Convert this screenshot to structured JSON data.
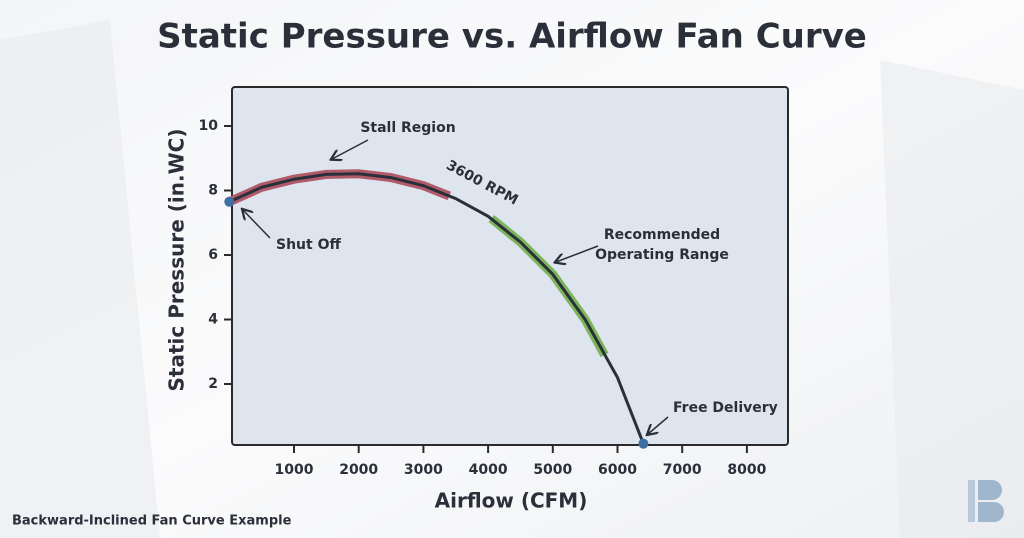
{
  "chart_data": {
    "type": "line",
    "title": "Static Pressure vs. Airflow Fan Curve",
    "xlabel": "Airflow (CFM)",
    "ylabel": "Static Pressure (in.WC)",
    "xlim": [
      0,
      8600
    ],
    "ylim": [
      0,
      11.2
    ],
    "xticks": [
      1000,
      2000,
      3000,
      4000,
      5000,
      6000,
      7000,
      8000
    ],
    "yticks": [
      2,
      4,
      6,
      8,
      10
    ],
    "x": [
      0,
      500,
      1000,
      1500,
      2000,
      2500,
      3000,
      3500,
      4000,
      4500,
      5000,
      5500,
      6000,
      6400
    ],
    "series": [
      {
        "name": "3600 RPM",
        "color": "#2b2f3a",
        "values": [
          7.65,
          8.1,
          8.35,
          8.5,
          8.52,
          8.4,
          8.15,
          7.75,
          7.2,
          6.4,
          5.4,
          4.0,
          2.2,
          0.15
        ]
      }
    ],
    "segments": [
      {
        "text": [
          "Stall Region"
        ],
        "color": "#b05a6a",
        "x": [
          0,
          500,
          1000,
          1500,
          2000,
          2500,
          3000,
          3400
        ],
        "values": [
          7.65,
          8.1,
          8.35,
          8.5,
          8.52,
          8.4,
          8.15,
          7.83
        ]
      },
      {
        "text": [
          "Recommended",
          "Operating Range"
        ],
        "color": "#7db55c",
        "x": [
          4050,
          4500,
          5000,
          5500,
          5800
        ],
        "values": [
          7.13,
          6.4,
          5.4,
          4.0,
          2.9
        ]
      }
    ],
    "points": [
      {
        "label": "Shut Off",
        "x": 0,
        "y": 7.65,
        "color": "#3d6fa3"
      },
      {
        "label": "Free Delivery",
        "x": 6400,
        "y": 0.15,
        "color": "#3d6fa3"
      }
    ]
  },
  "caption": "Backward-Inclined Fan Curve Example"
}
